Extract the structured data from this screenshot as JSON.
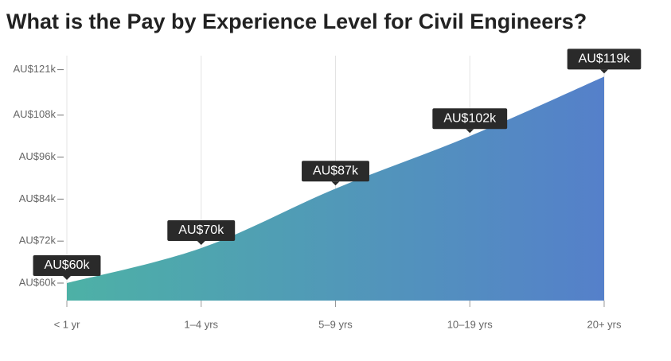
{
  "chart_data": {
    "type": "area",
    "title": "What is the Pay by Experience Level for Civil Engineers?",
    "categories": [
      "< 1 yr",
      "1–4 yrs",
      "5–9 yrs",
      "10–19 yrs",
      "20+ yrs"
    ],
    "values": [
      60,
      70,
      87,
      102,
      119
    ],
    "value_labels": [
      "AU$60k",
      "AU$70k",
      "AU$87k",
      "AU$102k",
      "AU$119k"
    ],
    "gradient": [
      "#4db1a6",
      "#5580ca"
    ],
    "ylim": [
      55,
      125
    ],
    "yticks": [
      {
        "value": 60,
        "label": "AU$60k"
      },
      {
        "value": 72,
        "label": "AU$72k"
      },
      {
        "value": 84,
        "label": "AU$84k"
      },
      {
        "value": 96,
        "label": "AU$96k"
      },
      {
        "value": 108,
        "label": "AU$108k"
      },
      {
        "value": 121,
        "label": "AU$121k"
      }
    ],
    "grid": true
  }
}
